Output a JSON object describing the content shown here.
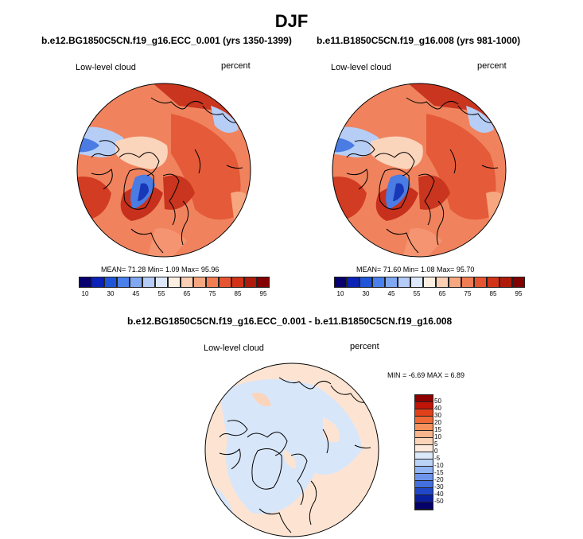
{
  "title": "DJF",
  "panels": [
    {
      "case": "b.e12.BG1850C5CN.f19_g16.ECC_0.001 (yrs 1350-1399)",
      "variable": "Low-level cloud",
      "units": "percent",
      "stats": "MEAN=  71.28  Min=   1.09  Max=  95.96"
    },
    {
      "case": "b.e11.B1850C5CN.f19_g16.008 (yrs 981-1000)",
      "variable": "Low-level cloud",
      "units": "percent",
      "stats": "MEAN=  71.60  Min=   1.08  Max=  95.70"
    }
  ],
  "diff": {
    "title": "b.e12.BG1850C5CN.f19_g16.ECC_0.001 - b.e11.B1850C5CN.f19_g16.008",
    "variable": "Low-level cloud",
    "units": "percent",
    "stats": "MIN =  -6.69 MAX =   6.89"
  },
  "colorbar_main": {
    "ticks": [
      "10",
      "30",
      "45",
      "55",
      "65",
      "75",
      "85",
      "95"
    ],
    "colors": [
      "#08006e",
      "#0a22b8",
      "#1f55d8",
      "#4a80ec",
      "#80a8f2",
      "#b4ccf7",
      "#dde9fb",
      "#fdeee2",
      "#fbcfb4",
      "#f7a780",
      "#f17d55",
      "#e75530",
      "#d23216",
      "#b01a0a",
      "#820000"
    ]
  },
  "colorbar_diff": {
    "ticks": [
      "50",
      "40",
      "30",
      "20",
      "15",
      "10",
      "5",
      "0",
      "-5",
      "-10",
      "-15",
      "-20",
      "-30",
      "-40",
      "-50"
    ],
    "colors": [
      "#8c0000",
      "#c21408",
      "#e2401a",
      "#f06a38",
      "#f5915c",
      "#f8b48c",
      "#fbd4b8",
      "#fdeade",
      "#dce9fb",
      "#bcd3f8",
      "#92b5f3",
      "#6d95ec",
      "#4470de",
      "#1f47c8",
      "#0a1ea0",
      "#06006a"
    ]
  },
  "map_colors": {
    "high": "#e8583a",
    "very_high": "#c7301c",
    "mid": "#f49470",
    "low": "#fbd4bc",
    "lowblue": "#b6cdf6",
    "blue": "#4b7ce3",
    "deepblue": "#1838b8",
    "diff_pos": "#fde4d2",
    "diff_neg": "#d8e6fa"
  }
}
